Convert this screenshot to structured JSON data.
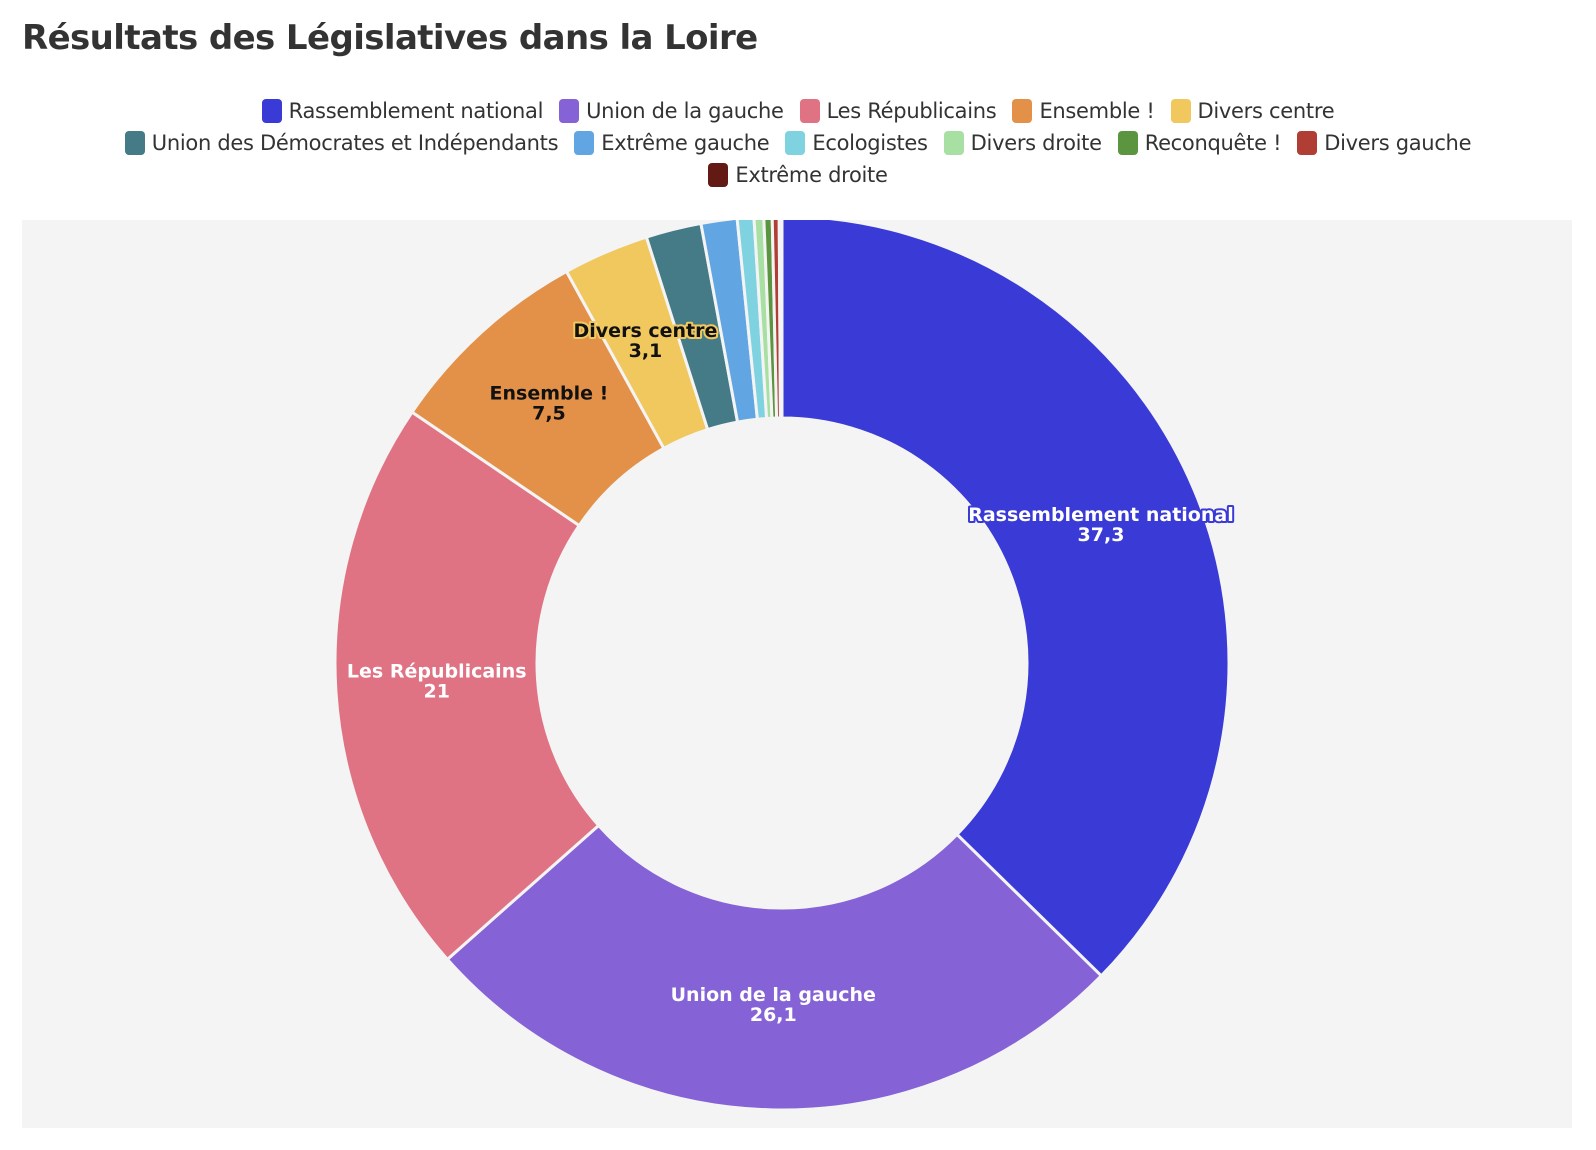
{
  "title": "Résultats des Législatives dans la Loire",
  "chart_data": {
    "type": "pie",
    "hole": true,
    "legend_position": "top",
    "series": [
      {
        "name": "Rassemblement national",
        "value": 37.3,
        "value_label": "37,3",
        "color": "#3a3ad6",
        "show_label": true,
        "label_color": "#ffffff"
      },
      {
        "name": "Union de la gauche",
        "value": 26.1,
        "value_label": "26,1",
        "color": "#8562d6",
        "show_label": true,
        "label_color": "#ffffff"
      },
      {
        "name": "Les Républicains",
        "value": 21,
        "value_label": "21",
        "color": "#df7384",
        "show_label": true,
        "label_color": "#ffffff"
      },
      {
        "name": "Ensemble !",
        "value": 7.5,
        "value_label": "7,5",
        "color": "#e39149",
        "show_label": true,
        "label_color": "#111111"
      },
      {
        "name": "Divers centre",
        "value": 3.1,
        "value_label": "3,1",
        "color": "#f0c85d",
        "show_label": true,
        "label_color": "#111111"
      },
      {
        "name": "Union des Démocrates et Indépendants",
        "value": 2.0,
        "value_label": "",
        "color": "#447b87",
        "show_label": false,
        "label_color": "#ffffff"
      },
      {
        "name": "Extrême gauche",
        "value": 1.3,
        "value_label": "",
        "color": "#62a5e3",
        "show_label": false,
        "label_color": "#ffffff"
      },
      {
        "name": "Ecologistes",
        "value": 0.6,
        "value_label": "",
        "color": "#7fd3e0",
        "show_label": false,
        "label_color": "#ffffff"
      },
      {
        "name": "Divers droite",
        "value": 0.35,
        "value_label": "",
        "color": "#a8e0a4",
        "show_label": false,
        "label_color": "#ffffff"
      },
      {
        "name": "Reconquête !",
        "value": 0.3,
        "value_label": "",
        "color": "#5b9540",
        "show_label": false,
        "label_color": "#ffffff"
      },
      {
        "name": "Divers gauche",
        "value": 0.25,
        "value_label": "",
        "color": "#b13e34",
        "show_label": false,
        "label_color": "#ffffff"
      },
      {
        "name": "Extrême droite",
        "value": 0.1,
        "value_label": "",
        "color": "#631a14",
        "show_label": false,
        "label_color": "#ffffff"
      }
    ]
  }
}
